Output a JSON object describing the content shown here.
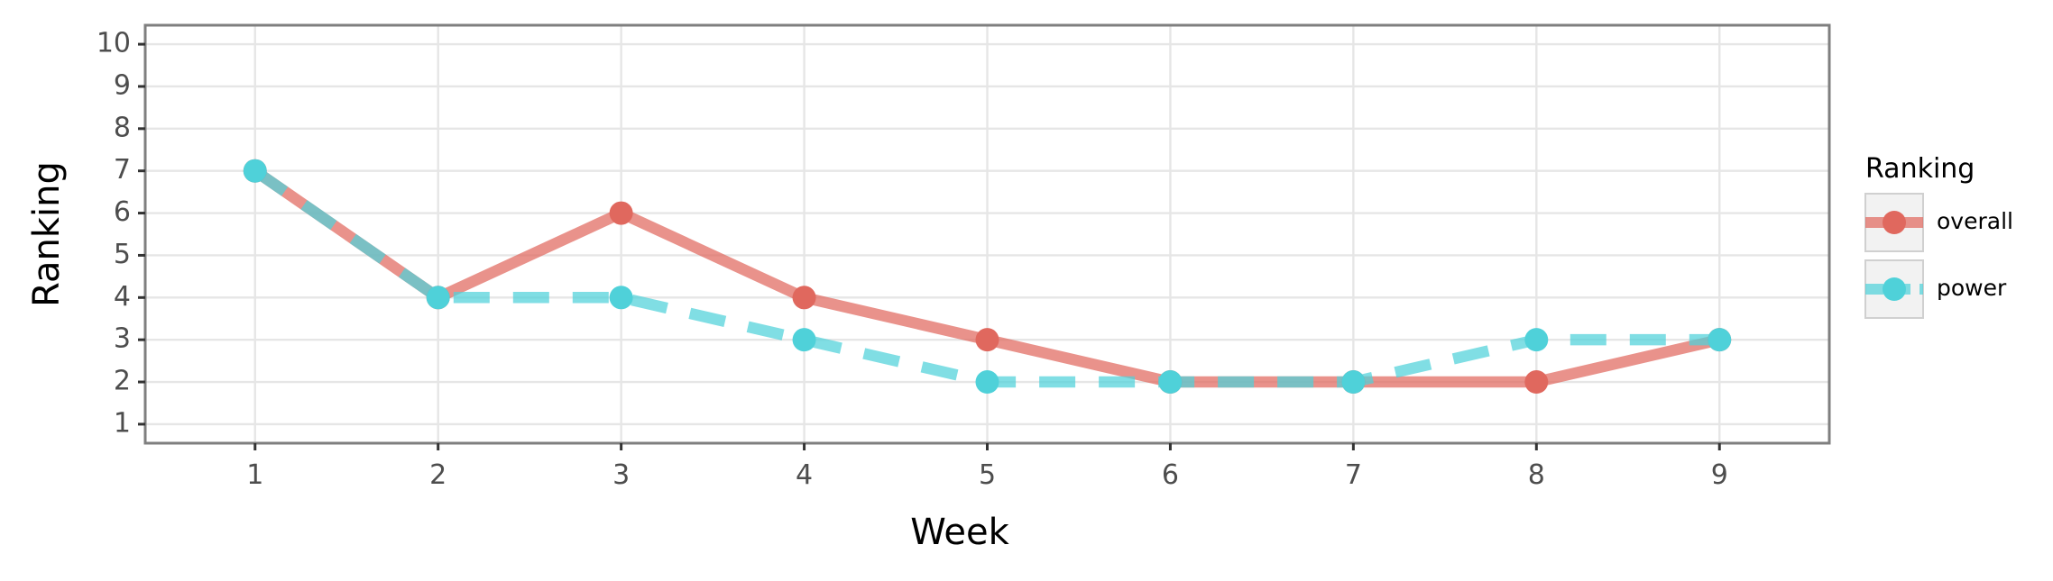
{
  "chart_data": {
    "type": "line",
    "title": "",
    "xlabel": "Week",
    "ylabel": "Ranking",
    "x": [
      1,
      2,
      3,
      4,
      5,
      6,
      7,
      8,
      9
    ],
    "xlim": [
      0.4,
      9.6
    ],
    "ylim": [
      10.45,
      0.55
    ],
    "y_reversed": true,
    "xticks": [
      "1",
      "2",
      "3",
      "4",
      "5",
      "6",
      "7",
      "8",
      "9"
    ],
    "yticks": [
      "1",
      "2",
      "3",
      "4",
      "5",
      "6",
      "7",
      "8",
      "9",
      "10"
    ],
    "grid": true,
    "legend": {
      "title": "Ranking",
      "position": "right"
    },
    "series": [
      {
        "name": "overall",
        "values": [
          7,
          4,
          6,
          4,
          3,
          2,
          2,
          2,
          3
        ],
        "color": "#E0685E",
        "line_style": "solid"
      },
      {
        "name": "power",
        "values": [
          7,
          4,
          4,
          3,
          2,
          2,
          2,
          3,
          3
        ],
        "color": "#4FD1D9",
        "line_style": "dashed"
      }
    ]
  }
}
